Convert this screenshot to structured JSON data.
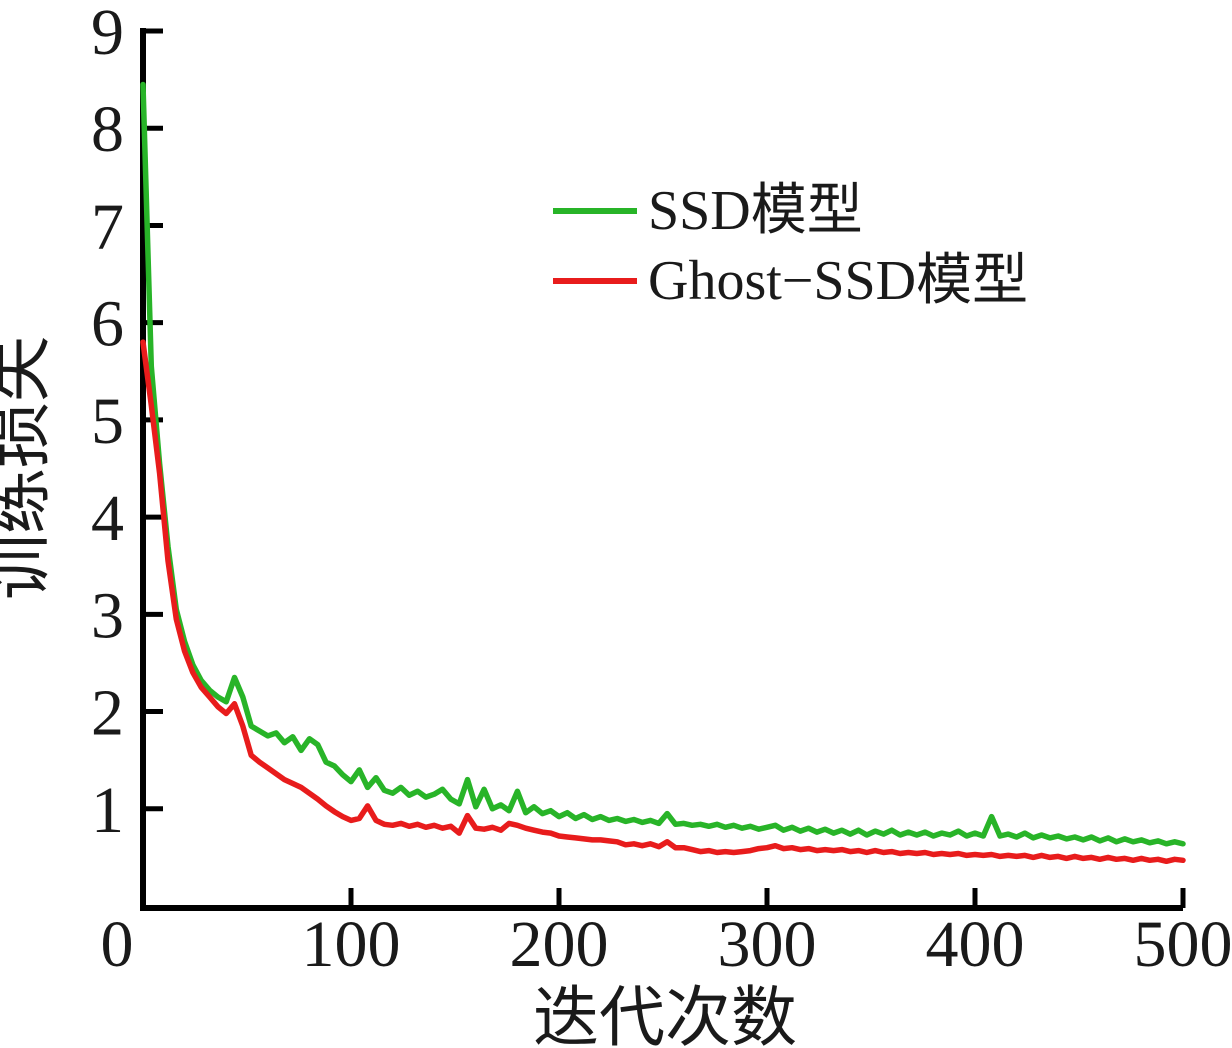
{
  "figure": {
    "background": "#ffffff",
    "axis_color": "#000000",
    "text_color": "#1a1a1a"
  },
  "chart_data": {
    "type": "line",
    "title": "",
    "xlabel": "迭代次数",
    "ylabel": "训练损失",
    "xlim": [
      0,
      500
    ],
    "ylim": [
      0,
      9
    ],
    "x_ticks": [
      0,
      100,
      200,
      300,
      400,
      500
    ],
    "y_ticks": [
      1,
      2,
      3,
      4,
      5,
      6,
      7,
      8,
      9
    ],
    "grid": false,
    "legend_position": "upper-center-inside",
    "x_start": 0,
    "x_step": 4,
    "series": [
      {
        "name": "SSD模型",
        "color": "#28b428",
        "values": [
          8.45,
          5.55,
          4.55,
          3.7,
          3.05,
          2.72,
          2.48,
          2.32,
          2.22,
          2.15,
          2.1,
          2.35,
          2.15,
          1.85,
          1.8,
          1.75,
          1.78,
          1.68,
          1.74,
          1.6,
          1.72,
          1.66,
          1.48,
          1.44,
          1.35,
          1.28,
          1.4,
          1.22,
          1.32,
          1.19,
          1.16,
          1.22,
          1.14,
          1.18,
          1.12,
          1.15,
          1.2,
          1.1,
          1.05,
          1.3,
          1.02,
          1.2,
          1.0,
          1.04,
          0.98,
          1.18,
          0.96,
          1.02,
          0.95,
          0.98,
          0.92,
          0.96,
          0.9,
          0.94,
          0.89,
          0.92,
          0.88,
          0.9,
          0.87,
          0.89,
          0.86,
          0.88,
          0.85,
          0.95,
          0.84,
          0.85,
          0.83,
          0.84,
          0.82,
          0.84,
          0.81,
          0.83,
          0.8,
          0.82,
          0.79,
          0.81,
          0.83,
          0.78,
          0.81,
          0.77,
          0.8,
          0.76,
          0.79,
          0.75,
          0.78,
          0.74,
          0.78,
          0.73,
          0.77,
          0.74,
          0.78,
          0.73,
          0.76,
          0.73,
          0.76,
          0.72,
          0.75,
          0.73,
          0.77,
          0.72,
          0.75,
          0.72,
          0.92,
          0.72,
          0.74,
          0.71,
          0.75,
          0.7,
          0.73,
          0.7,
          0.72,
          0.69,
          0.71,
          0.68,
          0.71,
          0.67,
          0.7,
          0.66,
          0.69,
          0.66,
          0.68,
          0.65,
          0.67,
          0.64,
          0.66,
          0.64
        ]
      },
      {
        "name": "Ghost−SSD模型",
        "color": "#e81c1c",
        "values": [
          5.8,
          5.15,
          4.45,
          3.55,
          2.95,
          2.62,
          2.4,
          2.25,
          2.15,
          2.05,
          1.98,
          2.08,
          1.85,
          1.55,
          1.48,
          1.42,
          1.36,
          1.3,
          1.26,
          1.22,
          1.16,
          1.1,
          1.03,
          0.97,
          0.92,
          0.88,
          0.9,
          1.03,
          0.88,
          0.84,
          0.83,
          0.85,
          0.82,
          0.84,
          0.81,
          0.83,
          0.8,
          0.82,
          0.75,
          0.93,
          0.8,
          0.79,
          0.81,
          0.78,
          0.85,
          0.83,
          0.8,
          0.78,
          0.76,
          0.75,
          0.72,
          0.71,
          0.7,
          0.69,
          0.68,
          0.68,
          0.67,
          0.66,
          0.63,
          0.64,
          0.62,
          0.64,
          0.61,
          0.66,
          0.6,
          0.6,
          0.58,
          0.56,
          0.57,
          0.55,
          0.56,
          0.55,
          0.56,
          0.57,
          0.59,
          0.6,
          0.62,
          0.59,
          0.6,
          0.58,
          0.59,
          0.57,
          0.58,
          0.57,
          0.58,
          0.56,
          0.57,
          0.55,
          0.57,
          0.55,
          0.56,
          0.54,
          0.55,
          0.54,
          0.55,
          0.53,
          0.54,
          0.53,
          0.54,
          0.52,
          0.53,
          0.52,
          0.53,
          0.51,
          0.52,
          0.51,
          0.52,
          0.5,
          0.52,
          0.5,
          0.51,
          0.49,
          0.51,
          0.49,
          0.5,
          0.48,
          0.5,
          0.48,
          0.49,
          0.47,
          0.49,
          0.47,
          0.48,
          0.46,
          0.48,
          0.47
        ]
      }
    ]
  }
}
